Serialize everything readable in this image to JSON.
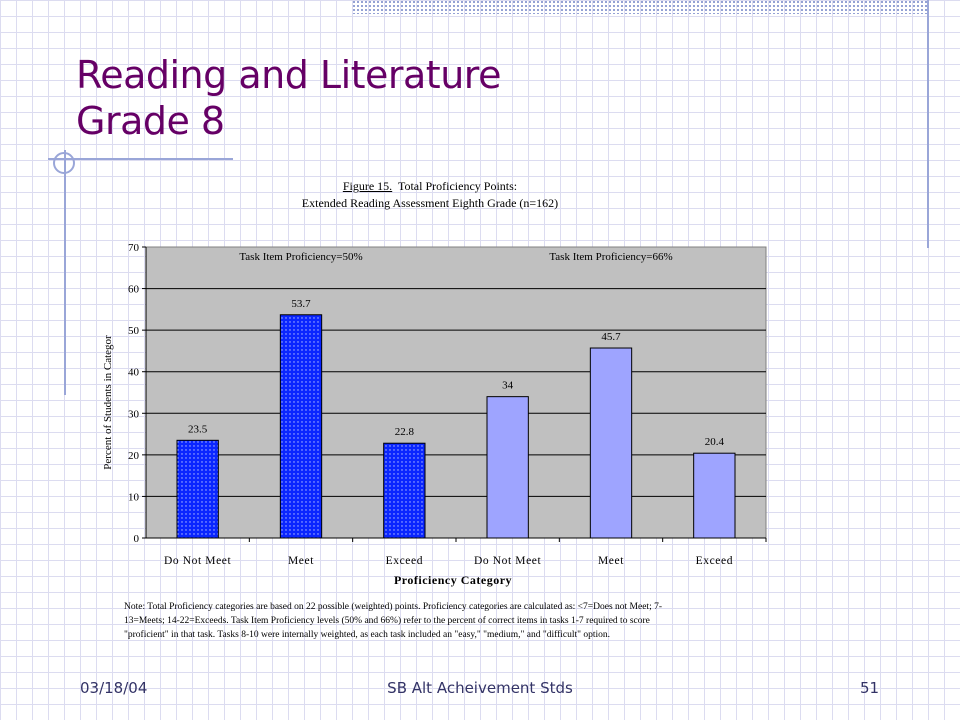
{
  "slide": {
    "title_line1": "Reading and Literature",
    "title_line2": "Grade 8",
    "footer_date": "03/18/04",
    "footer_center": "SB Alt Acheivement Stds",
    "page_number": "51"
  },
  "chart_data": {
    "type": "bar",
    "figure_label": "Figure 15.",
    "title_rest": "Total Proficiency Points:",
    "subtitle": "Extended Reading Assessment Eighth Grade (n=162)",
    "categories": [
      "Do Not Meet",
      "Meet",
      "Exceed",
      "Do Not Meet",
      "Meet",
      "Exceed"
    ],
    "values": [
      23.5,
      53.7,
      22.8,
      34,
      45.7,
      20.4
    ],
    "value_labels": [
      "23.5",
      "53.7",
      "22.8",
      "34",
      "45.7",
      "20.4"
    ],
    "groups": [
      {
        "label": "Task Item Proficiency=50%",
        "color": "#0a26ff"
      },
      {
        "label": "Task Item Proficiency=66%",
        "color": "#9ea4ff"
      }
    ],
    "xlabel": "Proficiency Category",
    "ylabel": "Percent of Students in Categor",
    "ylim": [
      0,
      70
    ],
    "yticks": [
      "0",
      "10",
      "20",
      "30",
      "40",
      "50",
      "60",
      "70"
    ],
    "grid": true,
    "plot_background": "#c0c0c0",
    "note_lines": [
      "Note: Total Proficiency categories are based on 22 possible (weighted) points.  Proficiency categories are calculated as: <7=Does not Meet; 7-",
      "13=Meets; 14-22=Exceeds.  Task Item Proficiency levels (50% and 66%) refer to the percent of correct items in tasks 1-7 required to score",
      "\"proficient\" in that task.  Tasks 8-10 were internally weighted, as each task included an \"easy,\" \"medium,\" and \"difficult\" option."
    ]
  }
}
